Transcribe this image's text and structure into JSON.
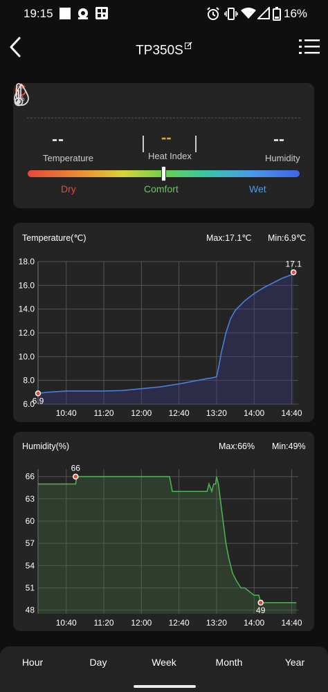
{
  "status_bar": {
    "time": "19:15",
    "battery": "16%",
    "icons": [
      "notification-square-icon",
      "lens-icon",
      "qr-app-icon",
      "alarm-icon",
      "vibrate-icon",
      "wifi-icon",
      "signal-icon",
      "battery-icon"
    ]
  },
  "header": {
    "title": "TP350S",
    "back_icon": "chevron-left-icon",
    "edit_icon": "edit-icon",
    "menu_icon": "list-menu-icon"
  },
  "comfort_card": {
    "temperature_value": "--",
    "temperature_label": "Temperature",
    "heat_index_value": "--",
    "heat_index_label": "Heat Index",
    "humidity_value": "--",
    "humidity_label": "Humidity",
    "scale": {
      "dry": "Dry",
      "comfort": "Comfort",
      "wet": "Wet",
      "colors": {
        "dry": "#e04a3a",
        "comfort": "#5fcc55",
        "wet": "#4a9be8",
        "heat_index": "#e8a035"
      }
    },
    "indicator_level": 0.5
  },
  "temperature_panel": {
    "title": "Temperature(℃)",
    "max_text": "Max:17.1℃",
    "min_text": "Min:6.9℃"
  },
  "humidity_panel": {
    "title": "Humidity(%)",
    "max_text": "Max:66%",
    "min_text": "Min:49%"
  },
  "chart_data": [
    {
      "type": "line",
      "title": "Temperature(℃)",
      "color": "#4a7fe0",
      "x_ticks": [
        "10:40",
        "11:20",
        "12:00",
        "12:40",
        "13:20",
        "14:00",
        "14:40"
      ],
      "y_ticks": [
        "6.0",
        "8.0",
        "10.0",
        "12.0",
        "14.0",
        "16.0",
        "18.0"
      ],
      "ylim": [
        6.0,
        18.0
      ],
      "xlim_minutes": [
        610,
        887
      ],
      "grid": true,
      "series": [
        {
          "x": [
            "10:10",
            "10:20",
            "10:40",
            "11:00",
            "11:20",
            "11:40",
            "12:00",
            "12:20",
            "12:40",
            "13:00",
            "13:10",
            "13:15",
            "13:20",
            "13:22",
            "13:25",
            "13:30",
            "13:35",
            "13:40",
            "13:50",
            "14:00",
            "14:10",
            "14:20",
            "14:30",
            "14:40",
            "14:42"
          ],
          "y": [
            6.9,
            7.0,
            7.1,
            7.1,
            7.1,
            7.15,
            7.3,
            7.45,
            7.7,
            8.0,
            8.15,
            8.2,
            8.3,
            9.0,
            10.3,
            12.0,
            13.2,
            13.9,
            14.7,
            15.3,
            15.8,
            16.2,
            16.6,
            16.9,
            17.1
          ]
        }
      ],
      "annotations": [
        {
          "x": "10:10",
          "y": 6.9,
          "label": "6.9"
        },
        {
          "x": "14:42",
          "y": 17.1,
          "label": "17.1"
        }
      ]
    },
    {
      "type": "line",
      "title": "Humidity(%)",
      "color": "#4caf50",
      "x_ticks": [
        "10:40",
        "11:20",
        "12:00",
        "12:40",
        "13:20",
        "14:00",
        "14:40"
      ],
      "y_ticks": [
        "48",
        "51",
        "54",
        "57",
        "60",
        "63",
        "66"
      ],
      "ylim": [
        47.5,
        67
      ],
      "xlim_minutes": [
        610,
        887
      ],
      "grid": true,
      "series": [
        {
          "x": [
            "10:10",
            "10:50",
            "10:51",
            "12:30",
            "12:33",
            "13:10",
            "13:12",
            "13:15",
            "13:17",
            "13:19",
            "13:20",
            "13:22",
            "13:24",
            "13:27",
            "13:30",
            "13:33",
            "13:37",
            "13:41",
            "13:46",
            "13:50",
            "14:00",
            "14:05",
            "14:07",
            "14:20",
            "14:45"
          ],
          "y": [
            65,
            65,
            66,
            66,
            64,
            64,
            65,
            64,
            65,
            65,
            66,
            65,
            63,
            60,
            57,
            55,
            53,
            52,
            51,
            51,
            50,
            50,
            49,
            49,
            49
          ]
        }
      ],
      "annotations": [
        {
          "x": "10:50",
          "y": 66,
          "label": "66"
        },
        {
          "x": "14:07",
          "y": 49,
          "label": "49"
        }
      ]
    }
  ],
  "tabs": [
    "Hour",
    "Day",
    "Week",
    "Month",
    "Year"
  ]
}
